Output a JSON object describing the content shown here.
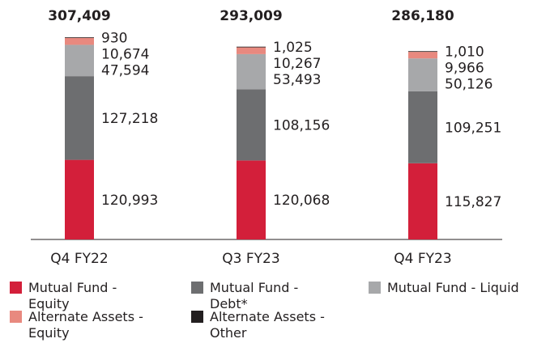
{
  "chart_data": {
    "type": "stacked_bar",
    "categories": [
      "Q4 FY22",
      "Q3 FY23",
      "Q4 FY23"
    ],
    "totals": {
      "values": [
        307409,
        293009,
        286180
      ],
      "value_labels": [
        "307,409",
        "293,009",
        "286,180"
      ]
    },
    "series": [
      {
        "name": "Mutual Fund - Equity",
        "color": "#d31f3a",
        "values": [
          120993,
          120068,
          115827
        ],
        "value_labels": [
          "120,993",
          "120,068",
          "115,827"
        ]
      },
      {
        "name": "Mutual Fund - Debt*",
        "color": "#6d6e70",
        "values": [
          127218,
          108156,
          109251
        ],
        "value_labels": [
          "127,218",
          "108,156",
          "109,251"
        ]
      },
      {
        "name": "Mutual Fund - Liquid",
        "color": "#a7a8aa",
        "values": [
          47594,
          53493,
          50126
        ],
        "value_labels": [
          "47,594",
          "53,493",
          "50,126"
        ]
      },
      {
        "name": "Alternate Assets - Equity",
        "color": "#e8897f",
        "values": [
          10674,
          10267,
          9966
        ],
        "value_labels": [
          "10,674",
          "10,267",
          "9,966"
        ]
      },
      {
        "name": "Alternate Assets - Other",
        "color": "#231f20",
        "values": [
          930,
          1025,
          1010
        ],
        "value_labels": [
          "930",
          "1,025",
          "1,010"
        ]
      }
    ]
  }
}
